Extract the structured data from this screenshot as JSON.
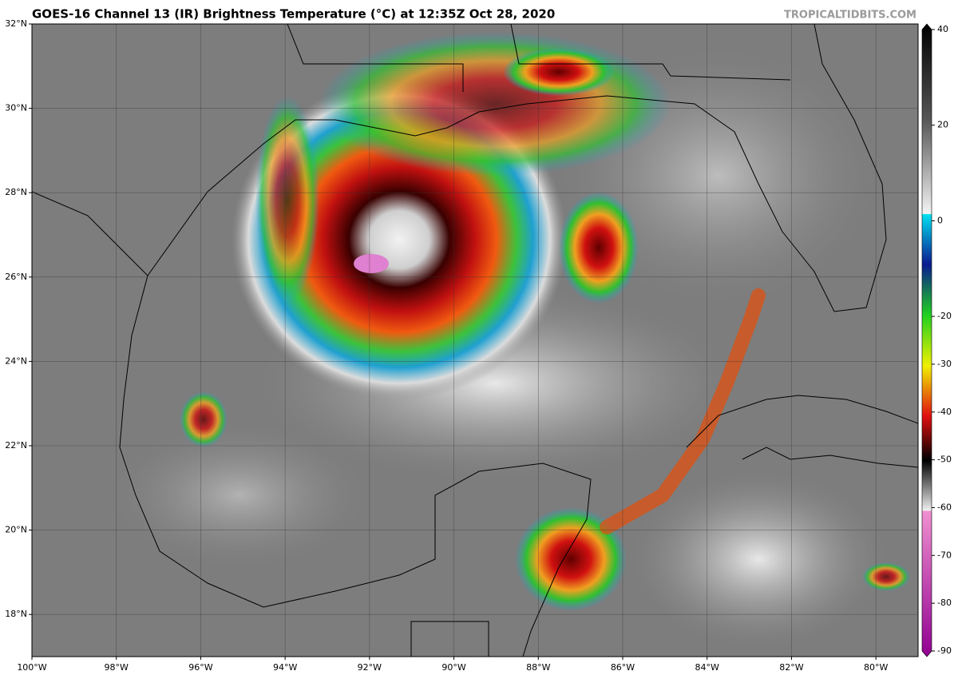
{
  "map": {
    "title": "GOES-16 Channel 13 (IR) Brightness Temperature (°C) at 12:35Z Oct 28, 2020",
    "credit": "TROPICALTIDBITS.COM",
    "xlim": [
      -100,
      -79
    ],
    "ylim": [
      17,
      32
    ],
    "xticks": [
      {
        "value": -100,
        "label": "100°W"
      },
      {
        "value": -98,
        "label": "98°W"
      },
      {
        "value": -96,
        "label": "96°W"
      },
      {
        "value": -94,
        "label": "94°W"
      },
      {
        "value": -92,
        "label": "92°W"
      },
      {
        "value": -90,
        "label": "90°W"
      },
      {
        "value": -88,
        "label": "88°W"
      },
      {
        "value": -86,
        "label": "86°W"
      },
      {
        "value": -84,
        "label": "84°W"
      },
      {
        "value": -82,
        "label": "82°W"
      },
      {
        "value": -80,
        "label": "80°W"
      }
    ],
    "yticks": [
      {
        "value": 32,
        "label": "32°N"
      },
      {
        "value": 30,
        "label": "30°N"
      },
      {
        "value": 28,
        "label": "28°N"
      },
      {
        "value": 26,
        "label": "26°N"
      },
      {
        "value": 24,
        "label": "24°N"
      },
      {
        "value": 22,
        "label": "22°N"
      },
      {
        "value": 20,
        "label": "20°N"
      },
      {
        "value": 18,
        "label": "18°N"
      }
    ],
    "colorbar": {
      "lim": [
        40,
        -90
      ],
      "ticks": [
        40,
        20,
        0,
        -20,
        -30,
        -40,
        -50,
        -60,
        -70,
        -80,
        -90
      ]
    }
  }
}
